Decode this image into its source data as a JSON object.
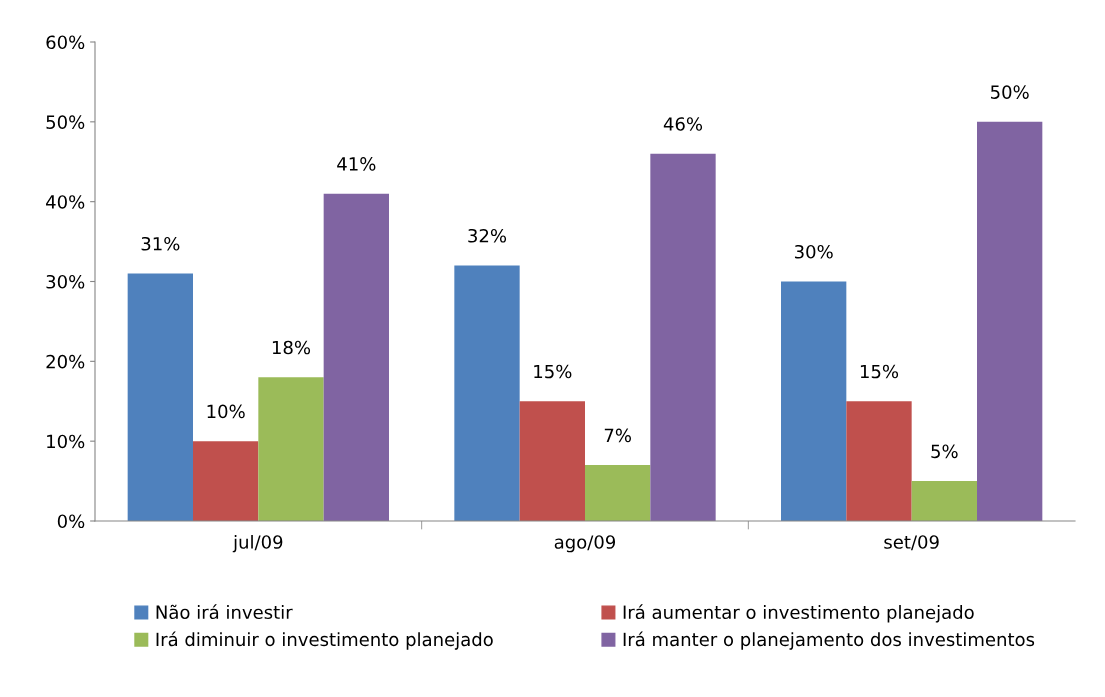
{
  "chart_data": {
    "type": "bar",
    "categories": [
      "jul/09",
      "ago/09",
      "set/09"
    ],
    "series": [
      {
        "name": "Não irá investir",
        "color": "#4f81bd",
        "values": [
          31,
          32,
          30
        ],
        "value_labels": [
          "31%",
          "32%",
          "30%"
        ]
      },
      {
        "name": "Irá aumentar o investimento planejado",
        "color": "#c0504d",
        "values": [
          10,
          15,
          15
        ],
        "value_labels": [
          "10%",
          "15%",
          "15%"
        ]
      },
      {
        "name": "Irá diminuir o investimento planejado",
        "color": "#9bbb59",
        "values": [
          18,
          7,
          5
        ],
        "value_labels": [
          "18%",
          "7%",
          "5%"
        ]
      },
      {
        "name": "Irá manter o planejamento dos investimentos",
        "color": "#8064a2",
        "values": [
          41,
          46,
          50
        ],
        "value_labels": [
          "41%",
          "46%",
          "50%"
        ]
      }
    ],
    "ylim": [
      0,
      60
    ],
    "yticks": [
      {
        "value": 0,
        "label": "0%"
      },
      {
        "value": 10,
        "label": "10%"
      },
      {
        "value": 20,
        "label": "20%"
      },
      {
        "value": 30,
        "label": "30%"
      },
      {
        "value": 40,
        "label": "40%"
      },
      {
        "value": 50,
        "label": "50%"
      },
      {
        "value": 60,
        "label": "60%"
      }
    ],
    "grid": false,
    "legend": "bottom"
  }
}
